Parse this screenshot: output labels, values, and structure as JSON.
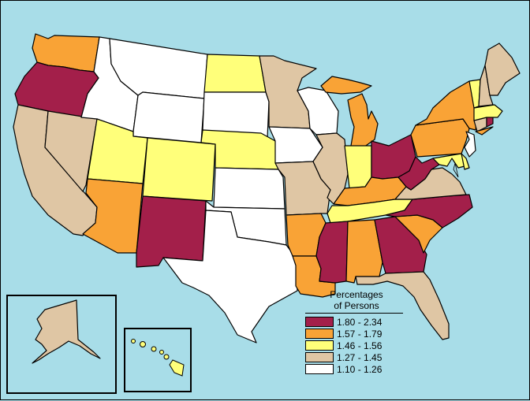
{
  "legend": {
    "title_line1": "Percentages",
    "title_line2": "of Persons",
    "items": [
      {
        "label": "1.80 - 2.34",
        "color": "#a31f4a"
      },
      {
        "label": "1.57 - 1.79",
        "color": "#f9a336"
      },
      {
        "label": "1.46 - 1.56",
        "color": "#ffff7a"
      },
      {
        "label": "1.27 - 1.45",
        "color": "#dfc6a4"
      },
      {
        "label": "1.10 - 1.26",
        "color": "#ffffff"
      }
    ]
  },
  "colors": {
    "ocean": "#a8dde8",
    "c1": "#a31f4a",
    "c2": "#f9a336",
    "c3": "#ffff7a",
    "c4": "#dfc6a4",
    "c5": "#ffffff"
  },
  "states": [
    {
      "id": "WA",
      "class": 2
    },
    {
      "id": "OR",
      "class": 1
    },
    {
      "id": "CA",
      "class": 4
    },
    {
      "id": "NV",
      "class": 4
    },
    {
      "id": "ID",
      "class": 5
    },
    {
      "id": "MT",
      "class": 5
    },
    {
      "id": "WY",
      "class": 5
    },
    {
      "id": "UT",
      "class": 3
    },
    {
      "id": "CO",
      "class": 3
    },
    {
      "id": "AZ",
      "class": 2
    },
    {
      "id": "NM",
      "class": 1
    },
    {
      "id": "ND",
      "class": 3
    },
    {
      "id": "SD",
      "class": 5
    },
    {
      "id": "NE",
      "class": 3
    },
    {
      "id": "KS",
      "class": 5
    },
    {
      "id": "OK",
      "class": 5
    },
    {
      "id": "TX",
      "class": 5
    },
    {
      "id": "MN",
      "class": 4
    },
    {
      "id": "IA",
      "class": 5
    },
    {
      "id": "MO",
      "class": 4
    },
    {
      "id": "AR",
      "class": 2
    },
    {
      "id": "LA",
      "class": 2
    },
    {
      "id": "WI",
      "class": 5
    },
    {
      "id": "IL",
      "class": 4
    },
    {
      "id": "MI",
      "class": 2
    },
    {
      "id": "IN",
      "class": 3
    },
    {
      "id": "OH",
      "class": 1
    },
    {
      "id": "KY",
      "class": 2
    },
    {
      "id": "TN",
      "class": 3
    },
    {
      "id": "MS",
      "class": 1
    },
    {
      "id": "AL",
      "class": 2
    },
    {
      "id": "GA",
      "class": 1
    },
    {
      "id": "FL",
      "class": 4
    },
    {
      "id": "SC",
      "class": 2
    },
    {
      "id": "NC",
      "class": 1
    },
    {
      "id": "VA",
      "class": 4
    },
    {
      "id": "WV",
      "class": 1
    },
    {
      "id": "PA",
      "class": 2
    },
    {
      "id": "NY",
      "class": 2
    },
    {
      "id": "MD",
      "class": 3
    },
    {
      "id": "DE",
      "class": 3
    },
    {
      "id": "NJ",
      "class": 5
    },
    {
      "id": "CT",
      "class": 4
    },
    {
      "id": "RI",
      "class": 1
    },
    {
      "id": "MA",
      "class": 3
    },
    {
      "id": "VT",
      "class": 3
    },
    {
      "id": "NH",
      "class": 4
    },
    {
      "id": "ME",
      "class": 4
    },
    {
      "id": "AK",
      "class": 4
    },
    {
      "id": "HI",
      "class": 3
    }
  ]
}
